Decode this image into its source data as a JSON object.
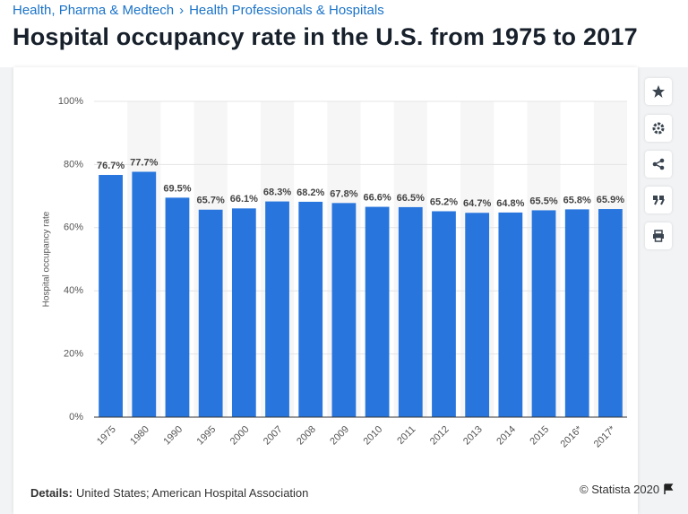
{
  "breadcrumb": {
    "items": [
      "Health, Pharma & Medtech",
      "Health Professionals & Hospitals"
    ],
    "separator": "›"
  },
  "chart_data": {
    "type": "bar",
    "title": "Hospital occupancy rate in the U.S. from 1975 to 2017",
    "y_label": "Hospital occupancy rate",
    "categories": [
      "1975",
      "1980",
      "1990",
      "1995",
      "2000",
      "2007",
      "2008",
      "2009",
      "2010",
      "2011",
      "2012",
      "2013",
      "2014",
      "2015",
      "2016*",
      "2017*"
    ],
    "values": [
      76.7,
      77.7,
      69.5,
      65.7,
      66.1,
      68.3,
      68.2,
      67.8,
      66.6,
      66.5,
      65.2,
      64.7,
      64.8,
      65.5,
      65.8,
      65.9
    ],
    "value_labels": [
      "76.7%",
      "77.7%",
      "69.5%",
      "65.7%",
      "66.1%",
      "68.3%",
      "68.2%",
      "67.8%",
      "66.6%",
      "66.5%",
      "65.2%",
      "64.7%",
      "64.8%",
      "65.5%",
      "65.8%",
      "65.9%"
    ],
    "color": "#2876dd",
    "ylim": [
      0,
      100
    ],
    "yticks": [
      {
        "value": 0,
        "label": "0%"
      },
      {
        "value": 20,
        "label": "20%"
      },
      {
        "value": 40,
        "label": "40%"
      },
      {
        "value": 60,
        "label": "60%"
      },
      {
        "value": 80,
        "label": "80%"
      },
      {
        "value": 100,
        "label": "100%"
      }
    ],
    "grid": true
  },
  "footer": {
    "details_label": "Details:",
    "details": "United States; American Hospital Association",
    "copyright": "© Statista 2020"
  }
}
